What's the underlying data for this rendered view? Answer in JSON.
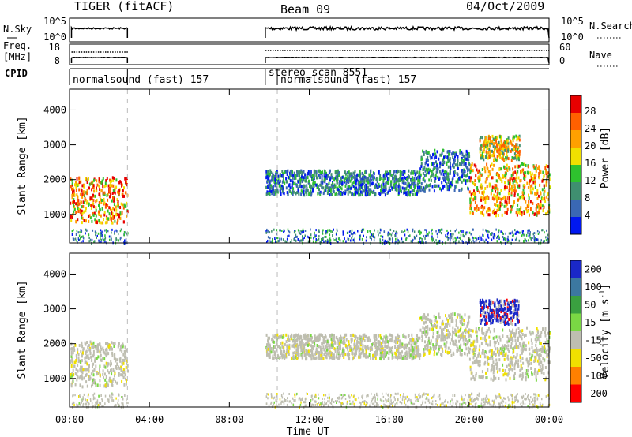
{
  "header": {
    "title": "TIGER (fitACF)",
    "beam": "Beam 09",
    "date": "04/Oct/2009"
  },
  "top_panels": {
    "nsky_label": "N.Sky",
    "nsky_ticks": [
      "10^5",
      "10^0"
    ],
    "nsearch_label": "N.Search",
    "nsearch_ticks": [
      "10^5",
      "10^0"
    ],
    "freq_label_1": "Freq.",
    "freq_label_2": "[MHz]",
    "freq_ticks": [
      "18",
      "8"
    ],
    "nave_label": "Nave",
    "nave_ticks": [
      "60",
      "0"
    ],
    "cpid_label": "CPID",
    "cpid_segments": [
      {
        "label": "normalsound (fast) 157",
        "start_h": 0.0,
        "end_h": 2.9
      },
      {
        "label": "stereo_scan 8551",
        "start_h": 9.8,
        "end_h": 10.4
      },
      {
        "label": "normalsound (fast) 157",
        "start_h": 10.4,
        "end_h": 24.0
      }
    ],
    "data_gap_h": [
      2.9,
      9.8
    ]
  },
  "chart_data": [
    {
      "type": "heatmap",
      "parameter": "Power",
      "ylabel": "Slant Range [km]",
      "ylim": [
        180,
        4600
      ],
      "yticks": [
        "1000",
        "2000",
        "3000",
        "4000"
      ],
      "xlim": [
        0,
        24
      ],
      "colorbar_label": "Power [dB]",
      "colorbar_ticks": [
        "4",
        "8",
        "12",
        "16",
        "20",
        "24",
        "28"
      ],
      "colorscale": [
        "#0018f0",
        "#3a68b4",
        "#3f8f70",
        "#2ec22e",
        "#f0e000",
        "#ffa000",
        "#ff6000",
        "#e80000"
      ],
      "echo_regions": [
        {
          "t_start_h": 0.0,
          "t_end_h": 2.9,
          "range_km": [
            800,
            2100
          ],
          "level": "strong"
        },
        {
          "t_start_h": 9.8,
          "t_end_h": 17.5,
          "range_km": [
            1600,
            2300
          ],
          "level": "weak"
        },
        {
          "t_start_h": 17.5,
          "t_end_h": 20.0,
          "range_km": [
            1700,
            2900
          ],
          "level": "weak"
        },
        {
          "t_start_h": 20.0,
          "t_end_h": 24.0,
          "range_km": [
            1000,
            2500
          ],
          "level": "strong"
        },
        {
          "t_start_h": 20.5,
          "t_end_h": 22.5,
          "range_km": [
            2600,
            3300
          ],
          "level": "medium"
        }
      ]
    },
    {
      "type": "heatmap",
      "parameter": "Velocity",
      "ylabel": "Slant Range [km]",
      "ylim": [
        180,
        4600
      ],
      "yticks": [
        "1000",
        "2000",
        "3000",
        "4000"
      ],
      "xlim": [
        0,
        24
      ],
      "colorbar_label": "Velocity [m s^-1]",
      "colorbar_ticks": [
        "200",
        "100",
        "50",
        "15",
        "-15",
        "-50",
        "-100",
        "-200"
      ],
      "colorscale": [
        "#1a28c8",
        "#3c78a0",
        "#3aa040",
        "#7ad844",
        "#bebeb0",
        "#f0e000",
        "#ff8000",
        "#ff0000"
      ],
      "echo_regions": [
        {
          "t_start_h": 0.0,
          "t_end_h": 2.9,
          "range_km": [
            800,
            2100
          ],
          "level": "ground"
        },
        {
          "t_start_h": 9.8,
          "t_end_h": 17.5,
          "range_km": [
            1600,
            2300
          ],
          "level": "ground"
        },
        {
          "t_start_h": 17.5,
          "t_end_h": 20.0,
          "range_km": [
            1700,
            2900
          ],
          "level": "ground"
        },
        {
          "t_start_h": 20.0,
          "t_end_h": 24.0,
          "range_km": [
            1000,
            2500
          ],
          "level": "ground"
        },
        {
          "t_start_h": 20.5,
          "t_end_h": 22.5,
          "range_km": [
            2600,
            3300
          ],
          "level": "positive"
        }
      ]
    }
  ],
  "xaxis": {
    "label": "Time UT",
    "ticks": [
      "00:00",
      "04:00",
      "08:00",
      "12:00",
      "16:00",
      "20:00",
      "00:00"
    ]
  }
}
